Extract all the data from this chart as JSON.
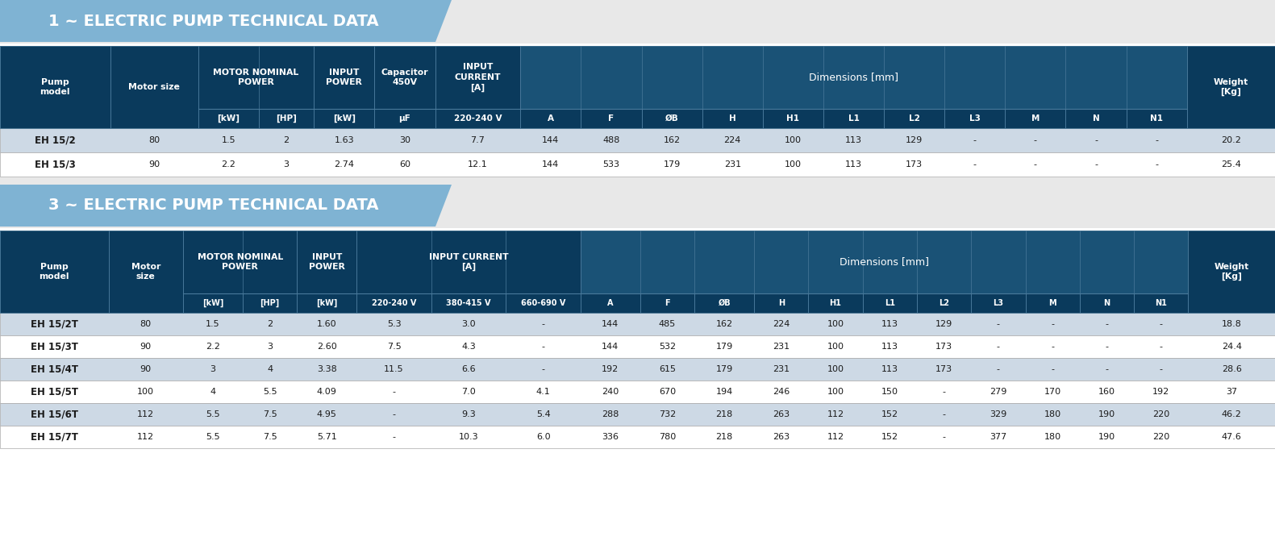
{
  "title1": "1 ~ ELECTRIC PUMP TECHNICAL DATA",
  "title2": "3 ~ ELECTRIC PUMP TECHNICAL DATA",
  "header_dark_bg": "#0a3a5c",
  "header_mid_bg": "#1a5276",
  "dimensions_bg": "#1f618d",
  "row_bg_light": "#cdd9e5",
  "row_bg_white": "#ffffff",
  "title_bg": "#7fb3d3",
  "page_bg": "#f0f0f0",
  "header_text_color": "#ffffff",
  "data_text_color": "#1a1a1a",
  "table1_data": [
    [
      "EH 15/2",
      "80",
      "1.5",
      "2",
      "1.63",
      "30",
      "7.7",
      "144",
      "488",
      "162",
      "224",
      "100",
      "113",
      "129",
      "-",
      "-",
      "-",
      "-",
      "20.2"
    ],
    [
      "EH 15/3",
      "90",
      "2.2",
      "3",
      "2.74",
      "60",
      "12.1",
      "144",
      "533",
      "179",
      "231",
      "100",
      "113",
      "173",
      "-",
      "-",
      "-",
      "-",
      "25.4"
    ]
  ],
  "table2_data": [
    [
      "EH 15/2T",
      "80",
      "1.5",
      "2",
      "1.60",
      "5.3",
      "3.0",
      "-",
      "144",
      "485",
      "162",
      "224",
      "100",
      "113",
      "129",
      "-",
      "-",
      "-",
      "-",
      "18.8"
    ],
    [
      "EH 15/3T",
      "90",
      "2.2",
      "3",
      "2.60",
      "7.5",
      "4.3",
      "-",
      "144",
      "532",
      "179",
      "231",
      "100",
      "113",
      "173",
      "-",
      "-",
      "-",
      "-",
      "24.4"
    ],
    [
      "EH 15/4T",
      "90",
      "3",
      "4",
      "3.38",
      "11.5",
      "6.6",
      "-",
      "192",
      "615",
      "179",
      "231",
      "100",
      "113",
      "173",
      "-",
      "-",
      "-",
      "-",
      "28.6"
    ],
    [
      "EH 15/5T",
      "100",
      "4",
      "5.5",
      "4.09",
      "-",
      "7.0",
      "4.1",
      "240",
      "670",
      "194",
      "246",
      "100",
      "150",
      "-",
      "279",
      "170",
      "160",
      "192",
      "37"
    ],
    [
      "EH 15/6T",
      "112",
      "5.5",
      "7.5",
      "4.95",
      "-",
      "9.3",
      "5.4",
      "288",
      "732",
      "218",
      "263",
      "112",
      "152",
      "-",
      "329",
      "180",
      "190",
      "220",
      "46.2"
    ],
    [
      "EH 15/7T",
      "112",
      "5.5",
      "7.5",
      "5.71",
      "-",
      "10.3",
      "6.0",
      "336",
      "780",
      "218",
      "263",
      "112",
      "152",
      "-",
      "377",
      "180",
      "190",
      "220",
      "47.6"
    ]
  ]
}
